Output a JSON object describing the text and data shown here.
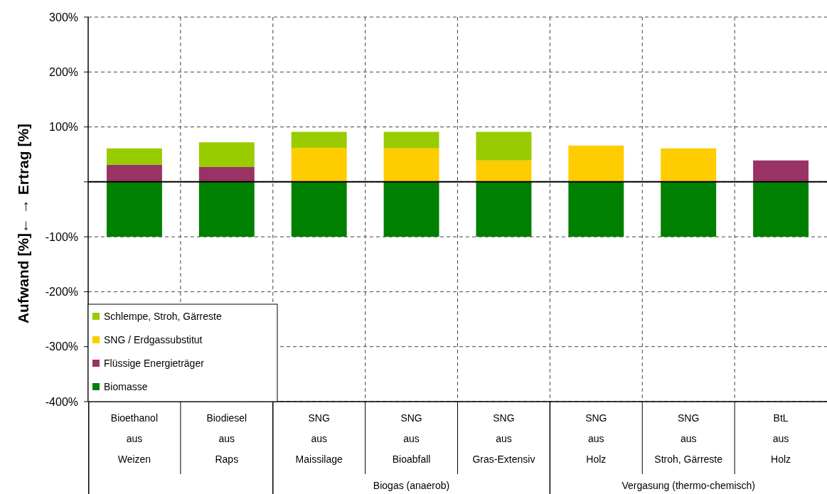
{
  "chart_data": {
    "type": "bar",
    "stacked": true,
    "ylabel": "Aufwand [%]←  → Ertrag [%]",
    "categories": [
      "Bioethanol\naus\nWeizen",
      "Biodiesel\naus\nRaps",
      "SNG\naus\nMaissilage",
      "SNG\naus\nBioabfall",
      "SNG\naus\nGras-Extensiv",
      "SNG\naus\nHolz",
      "SNG\naus\nStroh, Gärreste",
      "BtL\naus\nHolz"
    ],
    "series": [
      {
        "name": "Biomasse",
        "color": "#008000",
        "values": [
          -100,
          -100,
          -100,
          -100,
          -100,
          -100,
          -100,
          -100
        ]
      },
      {
        "name": "Flüssige Energieträger",
        "color": "#993366",
        "values": [
          31,
          27,
          null,
          null,
          null,
          null,
          null,
          39
        ]
      },
      {
        "name": "SNG / Erdgassubstitut",
        "color": "#ffcc00",
        "values": [
          null,
          null,
          62,
          61,
          39,
          66,
          61,
          null
        ]
      },
      {
        "name": "Schlempe, Stroh, Gärreste",
        "color": "#99cc00",
        "values": [
          30,
          45,
          29,
          30,
          52,
          null,
          null,
          null
        ]
      }
    ],
    "ylim": [
      -400,
      300
    ],
    "yticks": [
      {
        "value": -400,
        "label": "-400%"
      },
      {
        "value": -300,
        "label": "-300%"
      },
      {
        "value": -200,
        "label": "-200%"
      },
      {
        "value": -100,
        "label": "-100%"
      },
      {
        "value": 0,
        "label": null
      },
      {
        "value": 100,
        "label": "100%"
      },
      {
        "value": 200,
        "label": "200%"
      },
      {
        "value": 300,
        "label": "300%"
      }
    ],
    "grid": true,
    "legend": "bottom left",
    "annotations": [
      "Biogas (anaerob)",
      "Vergasung (thermo-chemisch)"
    ]
  }
}
